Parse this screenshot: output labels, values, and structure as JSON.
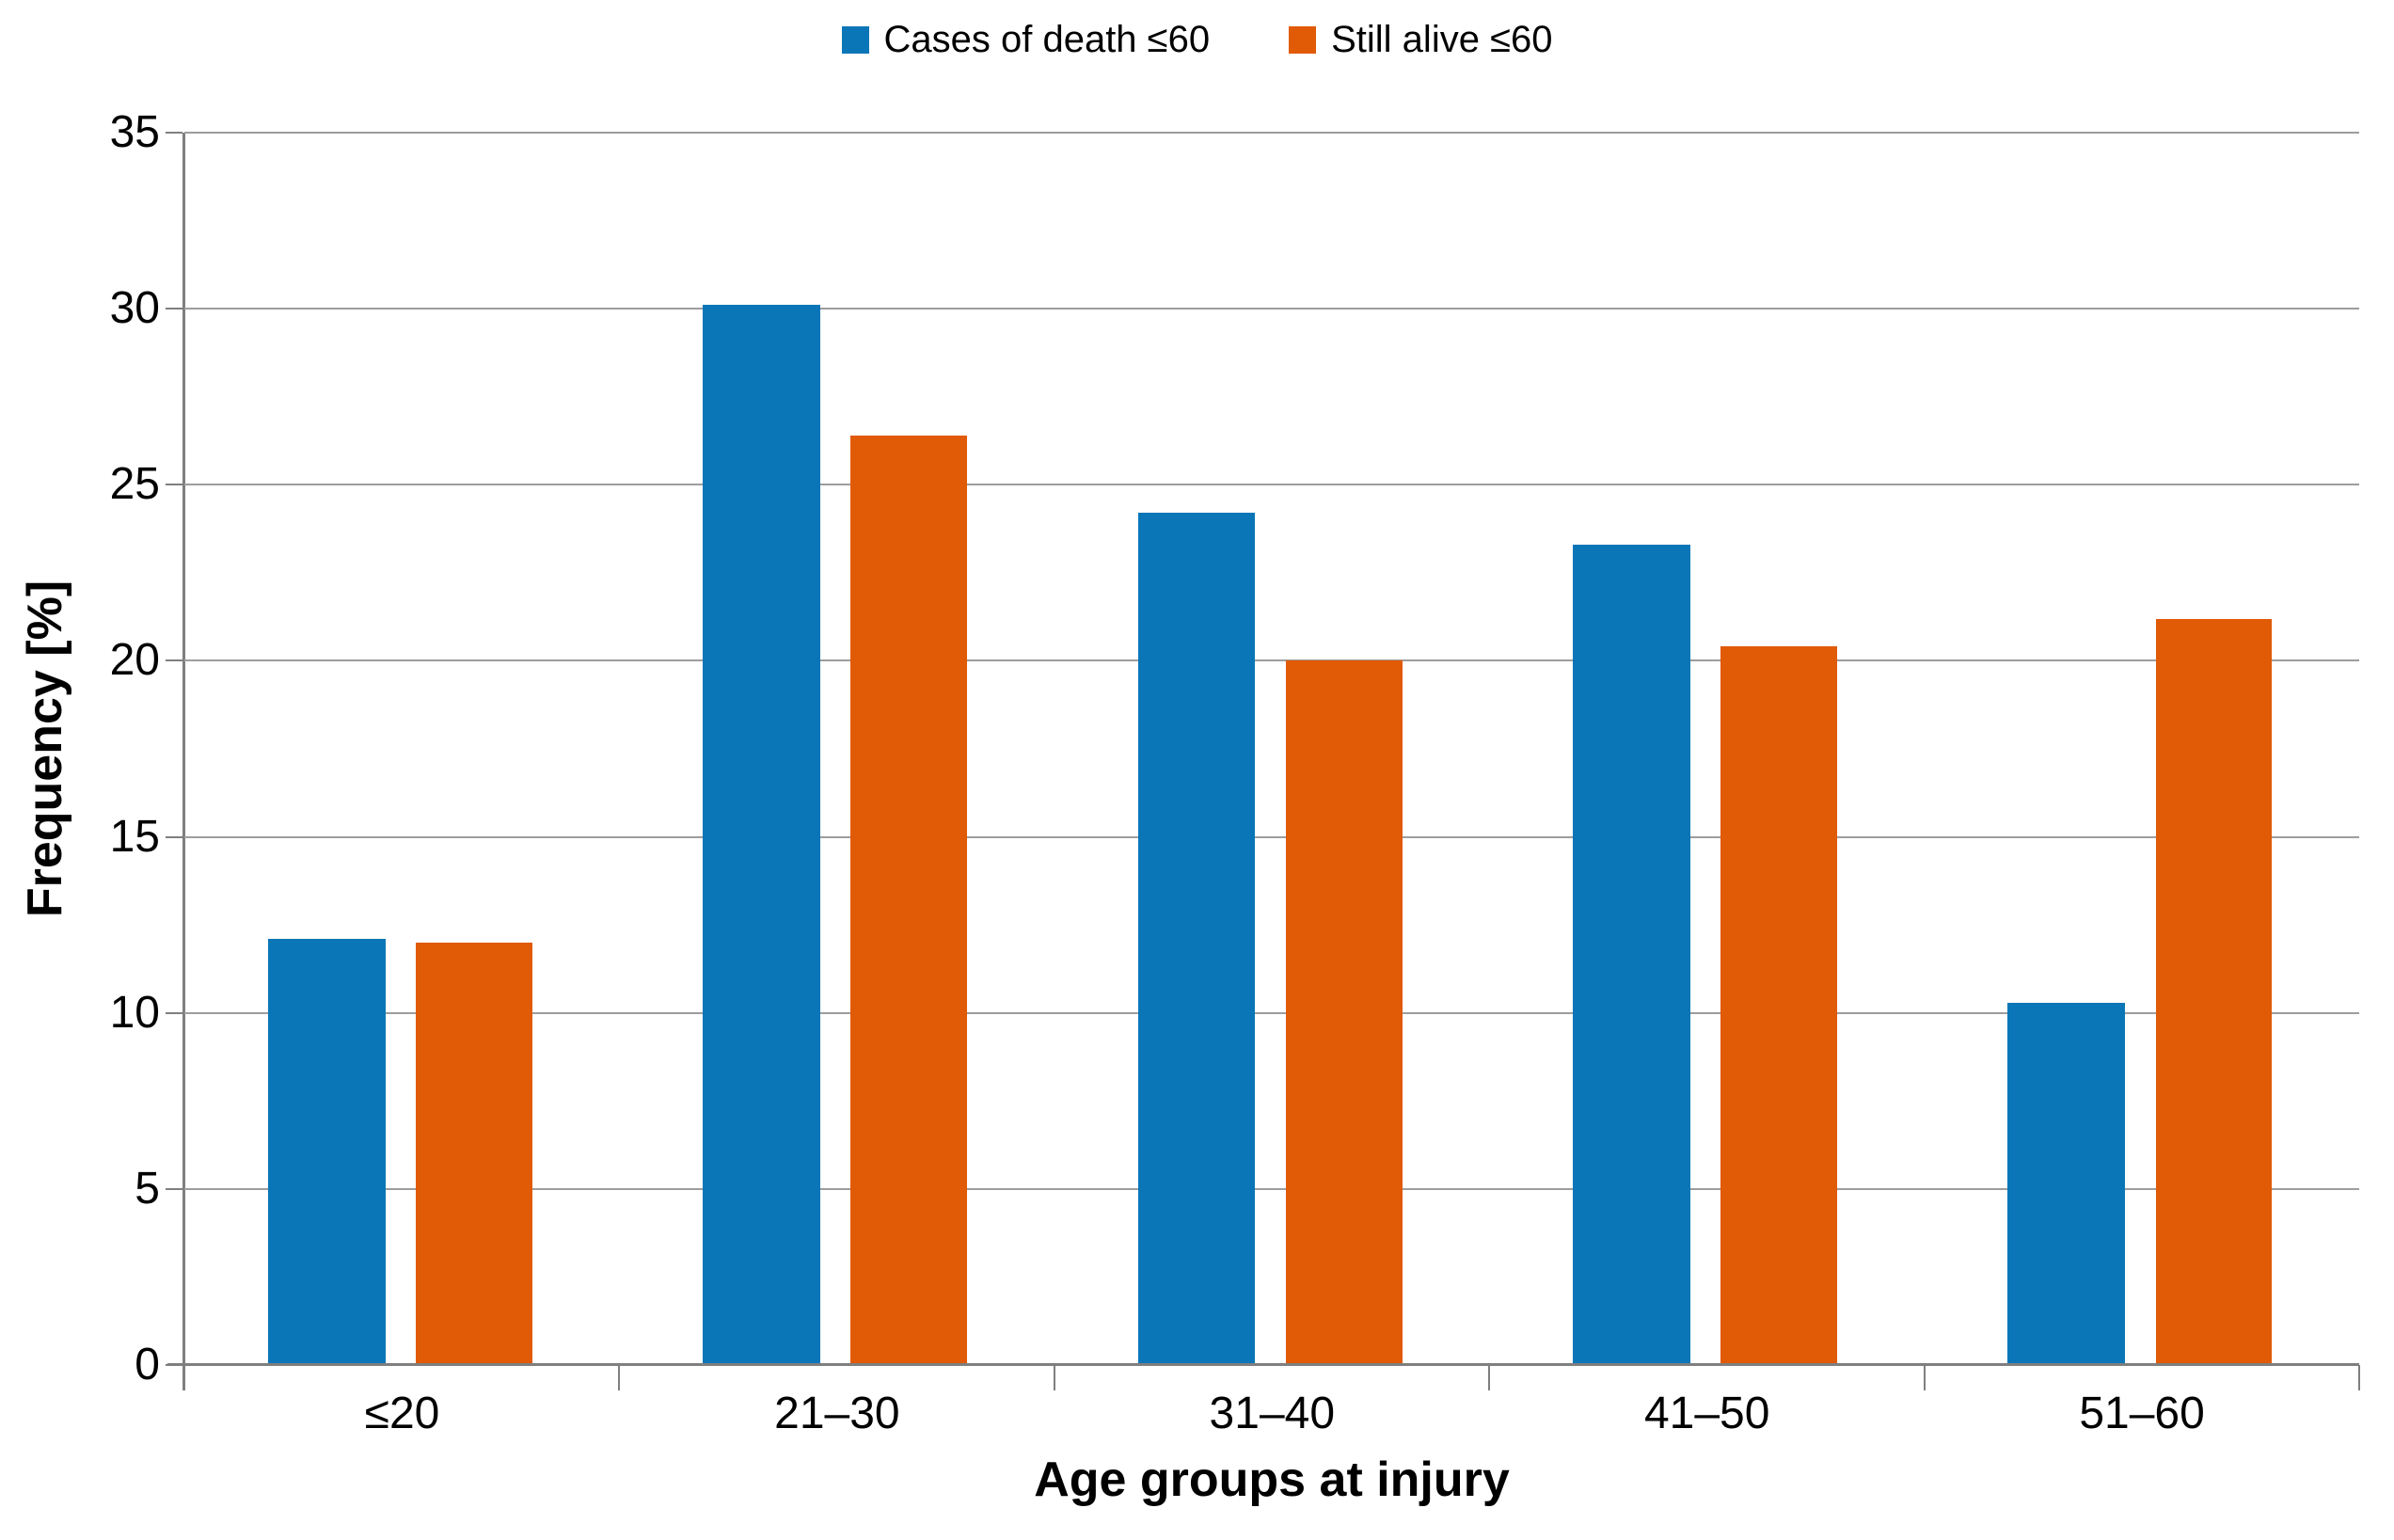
{
  "chart_data": {
    "type": "bar",
    "categories": [
      "≤20",
      "21–30",
      "31–40",
      "41–50",
      "51–60"
    ],
    "series": [
      {
        "name": "Cases of death ≤60",
        "color": "#0A76B7",
        "values": [
          12.1,
          30.1,
          24.2,
          23.3,
          10.3
        ]
      },
      {
        "name": "Still alive ≤60",
        "color": "#E15A05",
        "values": [
          12.0,
          26.4,
          20.0,
          20.4,
          21.2
        ]
      }
    ],
    "xlabel": "Age groups at injury",
    "ylabel": "Frequency [%]",
    "ylim": [
      0,
      35
    ],
    "ytick_step": 5,
    "grid": true,
    "legend_position": "top-center",
    "grid_color": "#9d9d9d",
    "axis_color": "#7f7f7f"
  }
}
